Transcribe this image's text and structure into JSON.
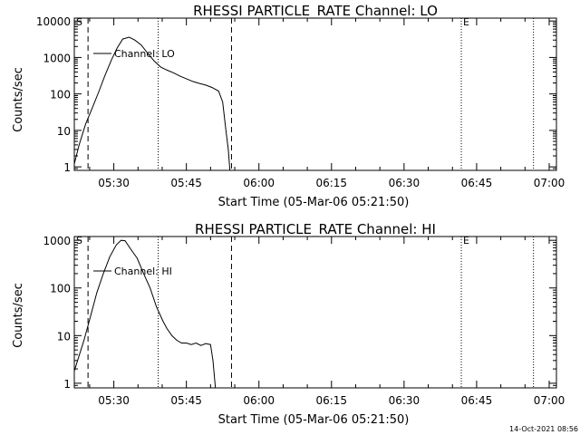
{
  "footer": "14-Oct-2021 08:56",
  "chart_data": [
    {
      "type": "line",
      "title": "RHESSI PARTICLE_RATE Channel: LO",
      "xlabel": "Start Time (05-Mar-06 05:21:50)",
      "ylabel": "Counts/sec",
      "yscale": "log",
      "xlim": [
        "05:21:50",
        "07:01:30"
      ],
      "ylim": [
        0.8,
        12000
      ],
      "x_ticks": [
        "05:30",
        "05:45",
        "06:00",
        "06:15",
        "06:30",
        "06:45",
        "07:00"
      ],
      "y_ticks": [
        "1",
        "10",
        "100",
        "1000",
        "10000"
      ],
      "legend": "Channel: LO",
      "markers": [
        {
          "label": "S",
          "time": "05:21:50",
          "style": "dashed"
        },
        {
          "label": "",
          "time": "05:24:40",
          "style": "dashed"
        },
        {
          "label": "",
          "time": "05:39:10",
          "style": "dotted"
        },
        {
          "label": "",
          "time": "05:54:20",
          "style": "dashed"
        },
        {
          "label": "E",
          "time": "06:41:50",
          "style": "dotted"
        },
        {
          "label": "",
          "time": "06:56:45",
          "style": "dotted"
        }
      ],
      "series": [
        {
          "x": [
            "05:21:50",
            "05:22:50",
            "05:24:10",
            "05:25:30",
            "05:26:50",
            "05:28:10",
            "05:29:30",
            "05:30:40",
            "05:31:50",
            "05:33:10",
            "05:34:20",
            "05:35:40",
            "05:37:00",
            "05:38:20",
            "05:39:40",
            "05:41:00",
            "05:42:20",
            "05:43:40",
            "05:45:00",
            "05:46:20",
            "05:47:40",
            "05:49:00",
            "05:50:20",
            "05:51:40",
            "05:52:30",
            "05:53:10",
            "05:53:40",
            "05:54:00"
          ],
          "values": [
            1.2,
            4,
            15,
            40,
            110,
            320,
            850,
            1800,
            3200,
            3600,
            3000,
            2200,
            1300,
            800,
            550,
            450,
            380,
            310,
            260,
            220,
            195,
            175,
            150,
            120,
            60,
            10,
            3,
            0.8
          ]
        }
      ]
    },
    {
      "type": "line",
      "title": "RHESSI PARTICLE_RATE Channel: HI",
      "xlabel": "Start Time (05-Mar-06 05:21:50)",
      "ylabel": "Counts/sec",
      "yscale": "log",
      "xlim": [
        "05:21:50",
        "07:01:30"
      ],
      "ylim": [
        0.8,
        1200
      ],
      "x_ticks": [
        "05:30",
        "05:45",
        "06:00",
        "06:15",
        "06:30",
        "06:45",
        "07:00"
      ],
      "y_ticks": [
        "1",
        "10",
        "100",
        "1000"
      ],
      "legend": "Channel: HI",
      "markers": [
        {
          "label": "S",
          "time": "05:21:50",
          "style": "dashed"
        },
        {
          "label": "",
          "time": "05:24:40",
          "style": "dashed"
        },
        {
          "label": "",
          "time": "05:39:10",
          "style": "dotted"
        },
        {
          "label": "",
          "time": "05:54:20",
          "style": "dashed"
        },
        {
          "label": "E",
          "time": "06:41:50",
          "style": "dotted"
        },
        {
          "label": "",
          "time": "06:56:45",
          "style": "dotted"
        }
      ],
      "series": [
        {
          "x": [
            "05:21:50",
            "05:22:30",
            "05:23:50",
            "05:25:10",
            "05:26:30",
            "05:27:50",
            "05:29:10",
            "05:30:30",
            "05:31:30",
            "05:32:20",
            "05:33:30",
            "05:34:50",
            "05:36:10",
            "05:37:30",
            "05:38:50",
            "05:40:10",
            "05:41:00",
            "05:42:00",
            "05:43:00",
            "05:44:00",
            "05:45:00",
            "05:46:00",
            "05:47:00",
            "05:48:00",
            "05:49:00",
            "05:50:00",
            "05:50:30",
            "05:51:00"
          ],
          "values": [
            1.8,
            3,
            8,
            25,
            80,
            200,
            450,
            800,
            1000,
            980,
            650,
            420,
            200,
            100,
            40,
            20,
            14,
            10,
            8,
            7,
            7,
            6.5,
            7,
            6.2,
            6.8,
            6.5,
            3,
            0.8
          ]
        }
      ]
    }
  ]
}
